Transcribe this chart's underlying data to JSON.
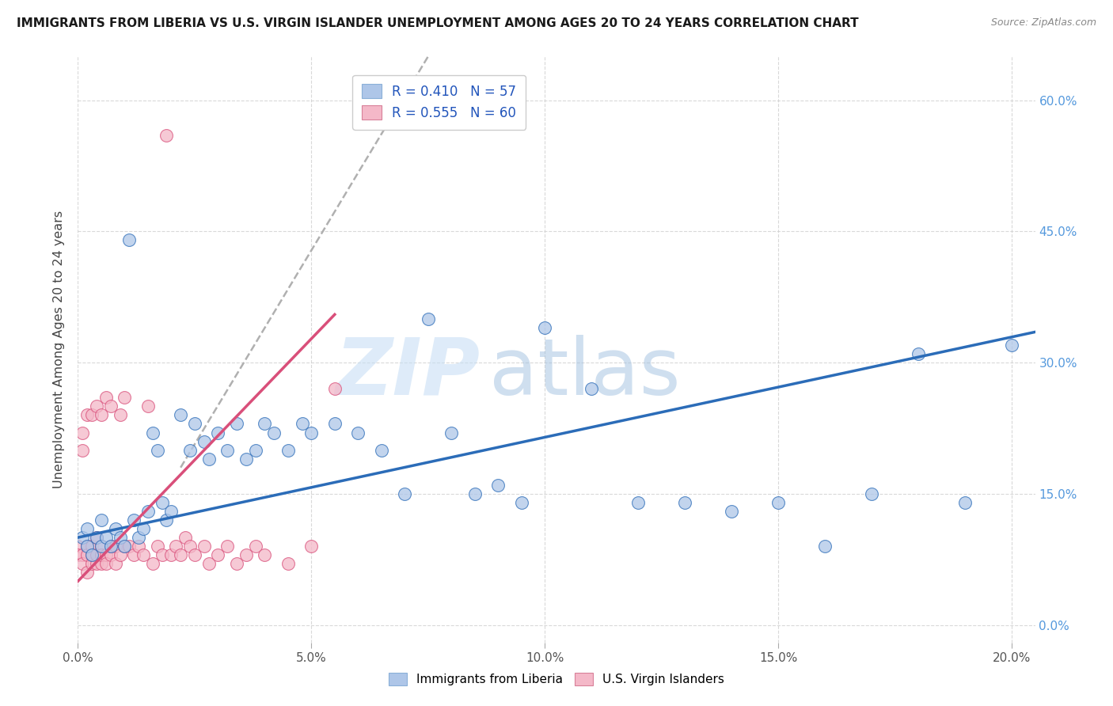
{
  "title": "IMMIGRANTS FROM LIBERIA VS U.S. VIRGIN ISLANDER UNEMPLOYMENT AMONG AGES 20 TO 24 YEARS CORRELATION CHART",
  "source": "Source: ZipAtlas.com",
  "ylabel": "Unemployment Among Ages 20 to 24 years",
  "xlim": [
    0.0,
    0.205
  ],
  "ylim": [
    -0.02,
    0.65
  ],
  "xticks": [
    0.0,
    0.05,
    0.1,
    0.15,
    0.2
  ],
  "yticks": [
    0.0,
    0.15,
    0.3,
    0.45,
    0.6
  ],
  "legend1_label": "R = 0.410   N = 57",
  "legend2_label": "R = 0.555   N = 60",
  "legend1_facecolor": "#aec6e8",
  "legend2_facecolor": "#f4b8c8",
  "watermark_zip": "ZIP",
  "watermark_atlas": "atlas",
  "blue_line_color": "#2b6cb8",
  "pink_line_color": "#d94f7a",
  "grid_color": "#d0d0d0",
  "background_color": "#ffffff",
  "right_ytick_color": "#5599dd",
  "figsize": [
    14.06,
    8.92
  ],
  "dpi": 100,
  "blue_scatter_x": [
    0.001,
    0.002,
    0.002,
    0.003,
    0.004,
    0.005,
    0.005,
    0.006,
    0.007,
    0.008,
    0.009,
    0.01,
    0.011,
    0.012,
    0.013,
    0.014,
    0.015,
    0.016,
    0.017,
    0.018,
    0.019,
    0.02,
    0.022,
    0.024,
    0.025,
    0.027,
    0.028,
    0.03,
    0.032,
    0.034,
    0.036,
    0.038,
    0.04,
    0.042,
    0.045,
    0.048,
    0.05,
    0.055,
    0.06,
    0.065,
    0.07,
    0.075,
    0.08,
    0.085,
    0.09,
    0.095,
    0.1,
    0.11,
    0.12,
    0.13,
    0.14,
    0.15,
    0.16,
    0.17,
    0.18,
    0.19,
    0.2
  ],
  "blue_scatter_y": [
    0.1,
    0.09,
    0.11,
    0.08,
    0.1,
    0.09,
    0.12,
    0.1,
    0.09,
    0.11,
    0.1,
    0.09,
    0.44,
    0.12,
    0.1,
    0.11,
    0.13,
    0.22,
    0.2,
    0.14,
    0.12,
    0.13,
    0.24,
    0.2,
    0.23,
    0.21,
    0.19,
    0.22,
    0.2,
    0.23,
    0.19,
    0.2,
    0.23,
    0.22,
    0.2,
    0.23,
    0.22,
    0.23,
    0.22,
    0.2,
    0.15,
    0.35,
    0.22,
    0.15,
    0.16,
    0.14,
    0.34,
    0.27,
    0.14,
    0.14,
    0.13,
    0.14,
    0.09,
    0.15,
    0.31,
    0.14,
    0.32
  ],
  "pink_scatter_x": [
    0.0,
    0.0,
    0.001,
    0.001,
    0.001,
    0.001,
    0.002,
    0.002,
    0.002,
    0.002,
    0.003,
    0.003,
    0.003,
    0.003,
    0.004,
    0.004,
    0.004,
    0.004,
    0.005,
    0.005,
    0.005,
    0.005,
    0.006,
    0.006,
    0.006,
    0.007,
    0.007,
    0.007,
    0.008,
    0.008,
    0.009,
    0.009,
    0.01,
    0.01,
    0.011,
    0.012,
    0.013,
    0.014,
    0.015,
    0.016,
    0.017,
    0.018,
    0.019,
    0.02,
    0.021,
    0.022,
    0.023,
    0.024,
    0.025,
    0.027,
    0.028,
    0.03,
    0.032,
    0.034,
    0.036,
    0.038,
    0.04,
    0.045,
    0.05,
    0.055
  ],
  "pink_scatter_y": [
    0.09,
    0.08,
    0.22,
    0.2,
    0.08,
    0.07,
    0.24,
    0.09,
    0.06,
    0.08,
    0.07,
    0.09,
    0.08,
    0.24,
    0.07,
    0.08,
    0.1,
    0.25,
    0.07,
    0.09,
    0.24,
    0.08,
    0.08,
    0.26,
    0.07,
    0.08,
    0.09,
    0.25,
    0.07,
    0.09,
    0.24,
    0.08,
    0.09,
    0.26,
    0.09,
    0.08,
    0.09,
    0.08,
    0.25,
    0.07,
    0.09,
    0.08,
    0.56,
    0.08,
    0.09,
    0.08,
    0.1,
    0.09,
    0.08,
    0.09,
    0.07,
    0.08,
    0.09,
    0.07,
    0.08,
    0.09,
    0.08,
    0.07,
    0.09,
    0.27
  ],
  "blue_line_x0": 0.0,
  "blue_line_y0": 0.1,
  "blue_line_x1": 0.205,
  "blue_line_y1": 0.335,
  "pink_line_x0": 0.0,
  "pink_line_y0": 0.05,
  "pink_line_x1": 0.055,
  "pink_line_y1": 0.355,
  "dash_line_x0": 0.022,
  "dash_line_y0": 0.18,
  "dash_line_x1": 0.075,
  "dash_line_y1": 0.65
}
